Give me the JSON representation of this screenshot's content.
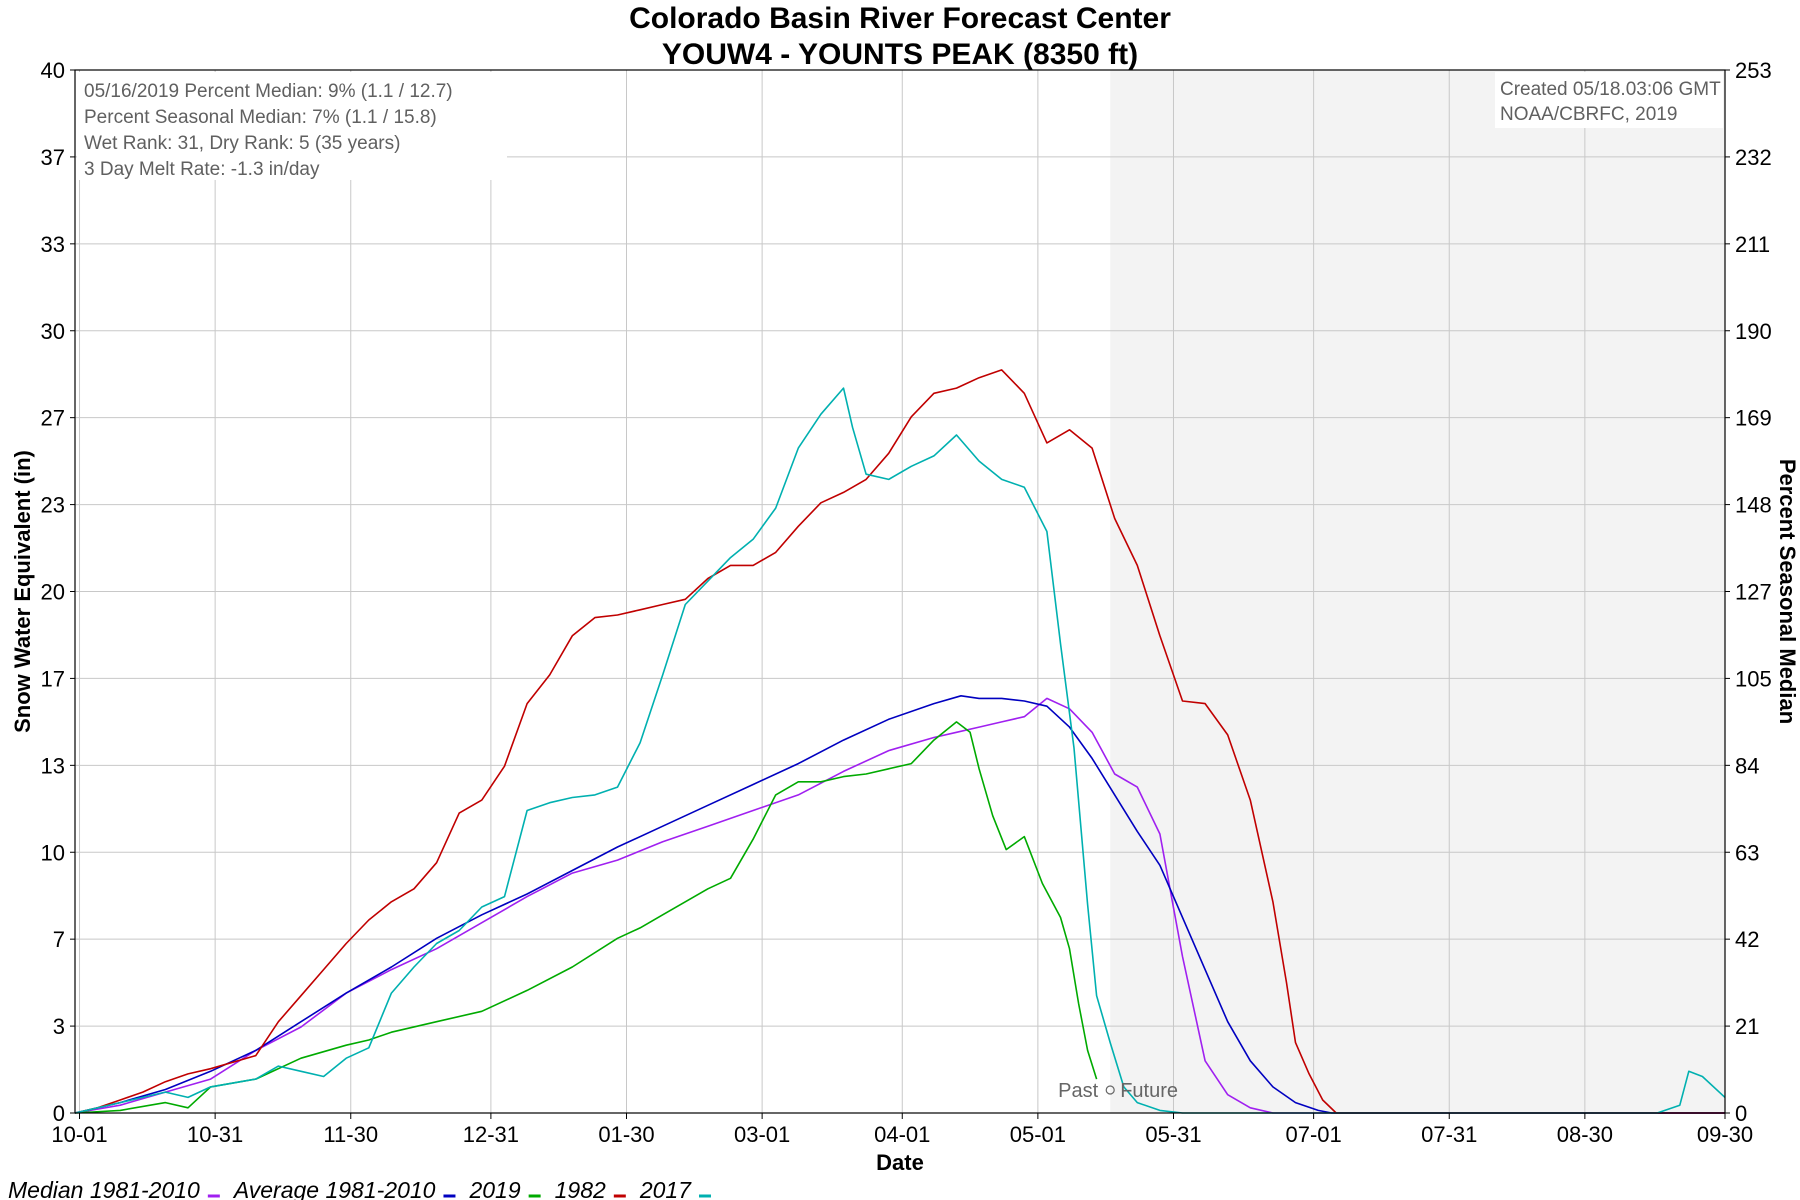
{
  "chart_data": {
    "type": "line",
    "title": "Colorado Basin River Forecast Center",
    "subtitle": "YOUW4 - YOUNTS PEAK (8350 ft)",
    "xlabel": "Date",
    "ylabel": "Snow Water Equivalent (in)",
    "y2label": "Percent Seasonal Median",
    "x_range_days": [
      0,
      365
    ],
    "xlim": [
      "09-30",
      "09-30"
    ],
    "ylim": [
      0,
      40
    ],
    "y2lim": [
      0,
      253
    ],
    "grid": true,
    "x_ticks": [
      {
        "label": "10-01",
        "day": 1
      },
      {
        "label": "10-31",
        "day": 31
      },
      {
        "label": "11-30",
        "day": 61
      },
      {
        "label": "12-31",
        "day": 92
      },
      {
        "label": "01-30",
        "day": 122
      },
      {
        "label": "03-01",
        "day": 152
      },
      {
        "label": "04-01",
        "day": 183
      },
      {
        "label": "05-01",
        "day": 213
      },
      {
        "label": "05-31",
        "day": 243
      },
      {
        "label": "07-01",
        "day": 274
      },
      {
        "label": "07-31",
        "day": 304
      },
      {
        "label": "08-30",
        "day": 334
      },
      {
        "label": "09-30",
        "day": 365
      }
    ],
    "y_ticks": [
      {
        "label": "0",
        "value": 0
      },
      {
        "label": "3",
        "value": 3.333
      },
      {
        "label": "7",
        "value": 6.667
      },
      {
        "label": "10",
        "value": 10
      },
      {
        "label": "13",
        "value": 13.333
      },
      {
        "label": "17",
        "value": 16.667
      },
      {
        "label": "20",
        "value": 20
      },
      {
        "label": "23",
        "value": 23.333
      },
      {
        "label": "27",
        "value": 26.667
      },
      {
        "label": "30",
        "value": 30
      },
      {
        "label": "33",
        "value": 33.333
      },
      {
        "label": "37",
        "value": 36.667
      },
      {
        "label": "40",
        "value": 40
      }
    ],
    "y2_ticks": [
      "0",
      "21",
      "42",
      "63",
      "84",
      "105",
      "127",
      "148",
      "169",
      "190",
      "211",
      "232",
      "253"
    ],
    "future_shading_start_day": 229,
    "past_label": "Past",
    "future_label": "Future",
    "info_lines": [
      "05/16/2019 Percent Median: 9% (1.1 / 12.7)",
      "Percent Seasonal Median: 7% (1.1 / 15.8)",
      "Wet Rank: 31, Dry Rank: 5  (35 years)",
      "3 Day Melt Rate: -1.3 in/day"
    ],
    "credit_lines": [
      "Created 05/18.03:06 GMT",
      "NOAA/CBRFC, 2019"
    ],
    "series": [
      {
        "name": "Median 1981-2010",
        "color": "#a020f0",
        "points": [
          [
            0,
            0
          ],
          [
            10,
            0.3
          ],
          [
            20,
            0.8
          ],
          [
            30,
            1.3
          ],
          [
            40,
            2.4
          ],
          [
            50,
            3.3
          ],
          [
            60,
            4.6
          ],
          [
            70,
            5.5
          ],
          [
            80,
            6.3
          ],
          [
            90,
            7.3
          ],
          [
            100,
            8.3
          ],
          [
            110,
            9.2
          ],
          [
            120,
            9.7
          ],
          [
            130,
            10.4
          ],
          [
            140,
            11
          ],
          [
            150,
            11.6
          ],
          [
            160,
            12.2
          ],
          [
            170,
            13.1
          ],
          [
            180,
            13.9
          ],
          [
            190,
            14.4
          ],
          [
            195,
            14.6
          ],
          [
            200,
            14.8
          ],
          [
            205,
            15
          ],
          [
            210,
            15.2
          ],
          [
            215,
            15.9
          ],
          [
            220,
            15.5
          ],
          [
            225,
            14.6
          ],
          [
            230,
            13
          ],
          [
            235,
            12.5
          ],
          [
            240,
            10.7
          ],
          [
            245,
            6
          ],
          [
            250,
            2
          ],
          [
            255,
            0.7
          ],
          [
            260,
            0.2
          ],
          [
            265,
            0
          ],
          [
            365,
            0
          ]
        ]
      },
      {
        "name": "Average 1981-2010",
        "color": "#0000c0",
        "points": [
          [
            0,
            0
          ],
          [
            10,
            0.4
          ],
          [
            20,
            0.9
          ],
          [
            30,
            1.6
          ],
          [
            40,
            2.4
          ],
          [
            50,
            3.5
          ],
          [
            60,
            4.6
          ],
          [
            70,
            5.6
          ],
          [
            80,
            6.7
          ],
          [
            90,
            7.6
          ],
          [
            100,
            8.4
          ],
          [
            110,
            9.3
          ],
          [
            120,
            10.2
          ],
          [
            130,
            11
          ],
          [
            140,
            11.8
          ],
          [
            150,
            12.6
          ],
          [
            160,
            13.4
          ],
          [
            170,
            14.3
          ],
          [
            180,
            15.1
          ],
          [
            190,
            15.7
          ],
          [
            196,
            16
          ],
          [
            200,
            15.9
          ],
          [
            205,
            15.9
          ],
          [
            210,
            15.8
          ],
          [
            215,
            15.6
          ],
          [
            220,
            14.8
          ],
          [
            225,
            13.6
          ],
          [
            230,
            12.2
          ],
          [
            235,
            10.8
          ],
          [
            240,
            9.5
          ],
          [
            245,
            7.5
          ],
          [
            250,
            5.5
          ],
          [
            255,
            3.5
          ],
          [
            260,
            2
          ],
          [
            265,
            1
          ],
          [
            270,
            0.4
          ],
          [
            275,
            0.1
          ],
          [
            278,
            0
          ],
          [
            365,
            0
          ]
        ]
      },
      {
        "name": "2019",
        "color": "#00aa00",
        "points": [
          [
            0,
            0
          ],
          [
            10,
            0.1
          ],
          [
            20,
            0.4
          ],
          [
            25,
            0.2
          ],
          [
            30,
            1.0
          ],
          [
            40,
            1.3
          ],
          [
            50,
            2.1
          ],
          [
            60,
            2.6
          ],
          [
            65,
            2.8
          ],
          [
            70,
            3.1
          ],
          [
            80,
            3.5
          ],
          [
            90,
            3.9
          ],
          [
            100,
            4.7
          ],
          [
            110,
            5.6
          ],
          [
            120,
            6.7
          ],
          [
            125,
            7.1
          ],
          [
            130,
            7.6
          ],
          [
            135,
            8.1
          ],
          [
            140,
            8.6
          ],
          [
            145,
            9.0
          ],
          [
            150,
            10.5
          ],
          [
            155,
            12.2
          ],
          [
            160,
            12.7
          ],
          [
            165,
            12.7
          ],
          [
            170,
            12.9
          ],
          [
            175,
            13.0
          ],
          [
            180,
            13.2
          ],
          [
            185,
            13.4
          ],
          [
            190,
            14.3
          ],
          [
            195,
            15
          ],
          [
            198,
            14.6
          ],
          [
            200,
            13.2
          ],
          [
            203,
            11.4
          ],
          [
            206,
            10.1
          ],
          [
            210,
            10.6
          ],
          [
            214,
            8.8
          ],
          [
            218,
            7.5
          ],
          [
            220,
            6.3
          ],
          [
            222,
            4.2
          ],
          [
            224,
            2.4
          ],
          [
            226,
            1.3
          ]
        ]
      },
      {
        "name": "1982",
        "color": "#c00000",
        "points": [
          [
            0,
            0
          ],
          [
            5,
            0.2
          ],
          [
            10,
            0.5
          ],
          [
            15,
            0.8
          ],
          [
            20,
            1.2
          ],
          [
            25,
            1.5
          ],
          [
            30,
            1.7
          ],
          [
            40,
            2.2
          ],
          [
            45,
            3.5
          ],
          [
            50,
            4.5
          ],
          [
            55,
            5.5
          ],
          [
            60,
            6.5
          ],
          [
            65,
            7.4
          ],
          [
            70,
            8.1
          ],
          [
            75,
            8.6
          ],
          [
            80,
            9.6
          ],
          [
            85,
            11.5
          ],
          [
            90,
            12
          ],
          [
            95,
            13.3
          ],
          [
            100,
            15.7
          ],
          [
            105,
            16.8
          ],
          [
            110,
            18.3
          ],
          [
            115,
            19
          ],
          [
            120,
            19.1
          ],
          [
            125,
            19.3
          ],
          [
            130,
            19.5
          ],
          [
            135,
            19.7
          ],
          [
            140,
            20.5
          ],
          [
            145,
            21
          ],
          [
            150,
            21
          ],
          [
            155,
            21.5
          ],
          [
            160,
            22.5
          ],
          [
            165,
            23.4
          ],
          [
            170,
            23.8
          ],
          [
            175,
            24.3
          ],
          [
            180,
            25.3
          ],
          [
            185,
            26.7
          ],
          [
            190,
            27.6
          ],
          [
            195,
            27.8
          ],
          [
            200,
            28.2
          ],
          [
            205,
            28.5
          ],
          [
            210,
            27.6
          ],
          [
            215,
            25.7
          ],
          [
            220,
            26.2
          ],
          [
            225,
            25.5
          ],
          [
            230,
            22.8
          ],
          [
            235,
            21
          ],
          [
            240,
            18.3
          ],
          [
            245,
            15.8
          ],
          [
            250,
            15.7
          ],
          [
            255,
            14.5
          ],
          [
            260,
            12
          ],
          [
            265,
            8.1
          ],
          [
            268,
            5
          ],
          [
            270,
            2.7
          ],
          [
            273,
            1.5
          ],
          [
            276,
            0.5
          ],
          [
            279,
            0
          ],
          [
            365,
            0
          ]
        ]
      },
      {
        "name": "2017",
        "color": "#00b0b0",
        "points": [
          [
            0,
            0
          ],
          [
            5,
            0.2
          ],
          [
            10,
            0.4
          ],
          [
            15,
            0.6
          ],
          [
            20,
            0.8
          ],
          [
            25,
            0.6
          ],
          [
            30,
            1
          ],
          [
            40,
            1.3
          ],
          [
            45,
            1.8
          ],
          [
            50,
            1.6
          ],
          [
            55,
            1.4
          ],
          [
            60,
            2.1
          ],
          [
            65,
            2.5
          ],
          [
            70,
            4.6
          ],
          [
            75,
            5.6
          ],
          [
            80,
            6.5
          ],
          [
            85,
            7
          ],
          [
            90,
            7.9
          ],
          [
            95,
            8.3
          ],
          [
            100,
            11.6
          ],
          [
            105,
            11.9
          ],
          [
            110,
            12.1
          ],
          [
            115,
            12.2
          ],
          [
            120,
            12.5
          ],
          [
            125,
            14.2
          ],
          [
            130,
            16.8
          ],
          [
            135,
            19.5
          ],
          [
            140,
            20.4
          ],
          [
            145,
            21.3
          ],
          [
            150,
            22
          ],
          [
            155,
            23.2
          ],
          [
            160,
            25.5
          ],
          [
            165,
            26.8
          ],
          [
            170,
            27.8
          ],
          [
            172,
            26.3
          ],
          [
            175,
            24.5
          ],
          [
            180,
            24.3
          ],
          [
            185,
            24.8
          ],
          [
            190,
            25.2
          ],
          [
            195,
            26
          ],
          [
            200,
            25
          ],
          [
            205,
            24.3
          ],
          [
            210,
            24
          ],
          [
            215,
            22.3
          ],
          [
            218,
            18
          ],
          [
            221,
            14
          ],
          [
            224,
            8
          ],
          [
            226,
            4.5
          ],
          [
            229,
            2.7
          ],
          [
            232,
            1
          ],
          [
            235,
            0.4
          ],
          [
            240,
            0.1
          ],
          [
            245,
            0
          ],
          [
            300,
            0
          ],
          [
            330,
            0
          ],
          [
            350,
            0
          ],
          [
            355,
            0.3
          ],
          [
            357,
            1.6
          ],
          [
            360,
            1.4
          ],
          [
            365,
            0.6
          ]
        ]
      }
    ]
  },
  "legend": {
    "items": [
      {
        "label": "Median 1981-2010",
        "color": "#a020f0"
      },
      {
        "label": "Average 1981-2010",
        "color": "#0000c0"
      },
      {
        "label": "2019",
        "color": "#00aa00"
      },
      {
        "label": "1982",
        "color": "#c00000"
      },
      {
        "label": "2017",
        "color": "#00b0b0"
      }
    ]
  }
}
